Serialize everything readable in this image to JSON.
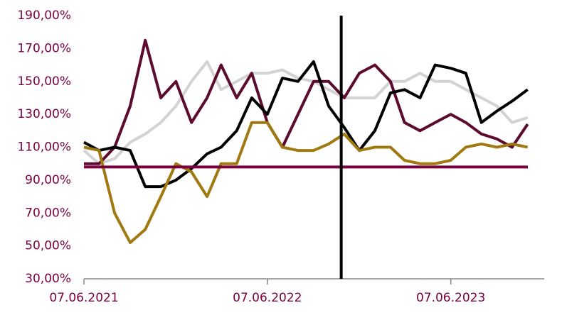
{
  "chart_data": {
    "type": "line",
    "x": [
      "07.06.2021",
      "07.07.2021",
      "07.08.2021",
      "07.09.2021",
      "07.10.2021",
      "07.11.2021",
      "07.12.2021",
      "07.01.2022",
      "07.02.2022",
      "07.03.2022",
      "07.04.2022",
      "07.05.2022",
      "07.06.2022",
      "07.07.2022",
      "07.08.2022",
      "07.09.2022",
      "07.10.2022",
      "07.11.2022",
      "07.12.2022",
      "07.01.2023",
      "07.02.2023",
      "07.03.2023",
      "07.04.2023",
      "07.05.2023",
      "07.06.2023",
      "07.07.2023",
      "07.08.2023",
      "07.09.2023",
      "07.10.2023",
      "07.11.2023"
    ],
    "series": [
      {
        "color": "#d3d3d3",
        "values": [
          108,
          100,
          103,
          113,
          118,
          125,
          135,
          150,
          162,
          145,
          150,
          155,
          155,
          157,
          152,
          150,
          145,
          140,
          140,
          140,
          150,
          150,
          155,
          150,
          150,
          145,
          140,
          135,
          125,
          128
        ]
      },
      {
        "color": "#5c0a2e",
        "values": [
          100,
          100,
          110,
          135,
          175,
          140,
          150,
          125,
          140,
          160,
          140,
          155,
          125,
          110,
          130,
          150,
          150,
          140,
          155,
          160,
          150,
          125,
          120,
          125,
          130,
          125,
          118,
          115,
          110,
          124
        ]
      },
      {
        "color": "#000000",
        "values": [
          113,
          108,
          110,
          108,
          86,
          86,
          90,
          97,
          106,
          110,
          120,
          140,
          130,
          152,
          150,
          162,
          135,
          122,
          108,
          120,
          143,
          145,
          140,
          160,
          158,
          155,
          125,
          132,
          138,
          145
        ]
      },
      {
        "color": "#a07a10",
        "values": [
          110,
          108,
          70,
          52,
          60,
          80,
          100,
          95,
          80,
          100,
          100,
          125,
          125,
          110,
          108,
          108,
          112,
          118,
          108,
          110,
          110,
          102,
          100,
          100,
          102,
          110,
          112,
          110,
          112,
          110
        ]
      }
    ],
    "reference_line": {
      "value": 98,
      "color": "#7a0040"
    },
    "vertical_line": {
      "x": "01.11.2022",
      "color": "#000000"
    },
    "xlim": [
      "07.06.2021",
      "10.12.2023"
    ],
    "xticks": [
      "07.06.2021",
      "07.06.2022",
      "07.06.2023"
    ],
    "ylim": [
      30,
      190
    ],
    "yticks": [
      {
        "value": 30,
        "label": "30,00%"
      },
      {
        "value": 50,
        "label": "50,00%"
      },
      {
        "value": 70,
        "label": "70,00%"
      },
      {
        "value": 90,
        "label": "90,00%"
      },
      {
        "value": 110,
        "label": "110,00%"
      },
      {
        "value": 130,
        "label": "130,00%"
      },
      {
        "value": 150,
        "label": "150,00%"
      },
      {
        "value": 170,
        "label": "170,00%"
      },
      {
        "value": 190,
        "label": "190,00%"
      }
    ],
    "label_color": "#7a0040"
  }
}
